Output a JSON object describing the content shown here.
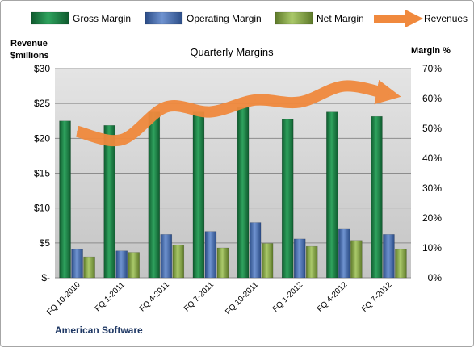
{
  "chart_data": {
    "type": "bar",
    "title": "Quarterly Margins",
    "company": "American Software",
    "y_left_label_line1": "Revenue",
    "y_left_label_line2": "$millions",
    "y_right_label": "Margin %",
    "categories": [
      "FQ 10-2010",
      "FQ 1-2011",
      "FQ 4-2011",
      "FQ 7-2011",
      "FQ 10-2011",
      "FQ 1-2012",
      "FQ 4-2012",
      "FQ 7-2012"
    ],
    "series": [
      {
        "name": "Gross Margin",
        "axis": "right",
        "unit": "%",
        "values": [
          52.5,
          51,
          55.5,
          55.5,
          57,
          53,
          55.5,
          54
        ],
        "color": "#1f8a4c"
      },
      {
        "name": "Operating Margin",
        "axis": "right",
        "unit": "%",
        "values": [
          9.5,
          9,
          14.5,
          15.5,
          18.5,
          13,
          16.5,
          14.5
        ],
        "color": "#4a72b8"
      },
      {
        "name": "Net Margin",
        "axis": "right",
        "unit": "%",
        "values": [
          7,
          8.5,
          11,
          10,
          11.5,
          10.5,
          12.5,
          9.5
        ],
        "color": "#8fb04d"
      },
      {
        "name": "Revenues",
        "axis": "left",
        "unit": "$M",
        "type": "line",
        "values": [
          21,
          19.8,
          24.5,
          23.8,
          25.5,
          25.2,
          27.5,
          26.3
        ],
        "color": "#f0893d"
      }
    ],
    "y_left": {
      "min": 0,
      "max": 30,
      "ticks": [
        "$-",
        "$5",
        "$10",
        "$15",
        "$20",
        "$25",
        "$30"
      ]
    },
    "y_right": {
      "min": 0,
      "max": 70,
      "ticks": [
        "0%",
        "10%",
        "20%",
        "30%",
        "40%",
        "50%",
        "60%",
        "70%"
      ]
    },
    "legend_position": "top",
    "grid": true
  }
}
